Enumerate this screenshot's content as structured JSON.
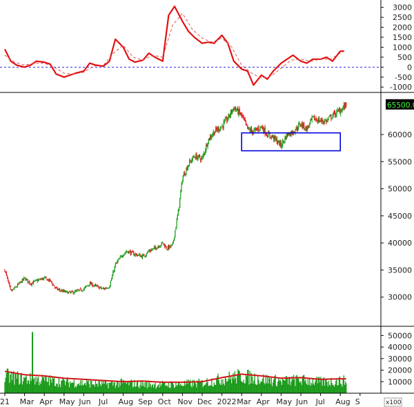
{
  "chart_data": {
    "type": "candlestick",
    "grid": false,
    "months": [
      "21",
      "Mar",
      "Apr",
      "May",
      "Jun",
      "Jul",
      "Aug",
      "Sep",
      "Oct",
      "Nov",
      "Dec",
      "2022",
      "Mar",
      "Apr",
      "May",
      "Jun",
      "Jul",
      "Aug",
      "S"
    ],
    "volume_unit_label": "x100",
    "panels": [
      {
        "name": "oscillator",
        "ylim": [
          -1200,
          3300
        ],
        "yticks": [
          "3000",
          "2500",
          "2000",
          "1500",
          "1000",
          "500",
          "0",
          "-500",
          "-1000"
        ],
        "reference_line": 0,
        "series": [
          {
            "style": "solid-red",
            "x": [
              0,
              0.3,
              0.6,
              1,
              1.3,
              1.6,
              2,
              2.3,
              2.6,
              3,
              3.3,
              3.6,
              4,
              4.3,
              4.6,
              5,
              5.3,
              5.6,
              6,
              6.3,
              6.6,
              7,
              7.3,
              7.6,
              8,
              8.3,
              8.6,
              9,
              9.3,
              9.6,
              10,
              10.3,
              10.6,
              11,
              11.3,
              11.6,
              12,
              12.3,
              12.6,
              13,
              13.3,
              13.6,
              14,
              14.3,
              14.6,
              15,
              15.3,
              15.6,
              16,
              16.3,
              16.6,
              17,
              17.2
            ],
            "y": [
              900,
              300,
              100,
              0,
              100,
              300,
              250,
              150,
              -350,
              -500,
              -400,
              -300,
              -200,
              200,
              100,
              50,
              300,
              1400,
              1000,
              400,
              250,
              350,
              700,
              500,
              300,
              2600,
              3050,
              2300,
              1800,
              1500,
              1200,
              1250,
              1200,
              1600,
              1200,
              300,
              -100,
              -200,
              -900,
              -400,
              -600,
              -200,
              200,
              400,
              600,
              300,
              200,
              400,
              400,
              500,
              300,
              800,
              800
            ]
          },
          {
            "style": "dashed-red",
            "x": [
              0,
              0.5,
              1,
              1.5,
              2,
              2.5,
              3,
              3.5,
              4,
              4.5,
              5,
              5.5,
              6,
              6.5,
              7,
              7.5,
              8,
              8.5,
              9,
              9.5,
              10,
              10.5,
              11,
              11.5,
              12,
              12.5,
              13,
              13.5,
              14,
              14.5,
              15,
              15.5,
              16,
              16.5,
              17,
              17.2
            ],
            "y": [
              600,
              250,
              100,
              200,
              200,
              0,
              -300,
              -350,
              -250,
              50,
              100,
              700,
              1100,
              500,
              350,
              600,
              500,
              2100,
              2700,
              1900,
              1450,
              1250,
              1450,
              1000,
              100,
              -300,
              -550,
              -450,
              -50,
              350,
              400,
              300,
              400,
              400,
              700,
              800
            ]
          }
        ]
      },
      {
        "name": "price",
        "ylim": [
          25000,
          67000
        ],
        "yticks": [
          "60000",
          "55000",
          "50000",
          "45000",
          "40000",
          "35000",
          "30000"
        ],
        "last_price_label": "65500.00",
        "last_price": 65500,
        "box": {
          "x": [
            12.0,
            17.0
          ],
          "y": [
            57000,
            60300
          ],
          "color": "#0000dd"
        },
        "close_series": {
          "x": [
            0,
            0.3,
            0.6,
            1,
            1.3,
            1.6,
            2,
            2.3,
            2.6,
            3,
            3.3,
            3.6,
            4,
            4.3,
            4.6,
            5,
            5.3,
            5.6,
            6,
            6.2,
            6.5,
            7,
            7.3,
            7.6,
            8,
            8.2,
            8.5,
            8.8,
            9,
            9.3,
            9.6,
            10,
            10.3,
            10.6,
            11,
            11.3,
            11.6,
            12,
            12.3,
            12.6,
            13,
            13.3,
            13.6,
            14,
            14.3,
            14.6,
            15,
            15.3,
            15.6,
            16,
            16.3,
            16.6,
            17,
            17.3
          ],
          "y": [
            35000,
            31000,
            32000,
            33500,
            32500,
            33000,
            33500,
            33000,
            31500,
            31000,
            30800,
            31000,
            31500,
            32500,
            32000,
            31500,
            32000,
            36000,
            38000,
            38500,
            38000,
            37500,
            38500,
            39000,
            40000,
            39000,
            39500,
            46000,
            52000,
            54500,
            56000,
            55500,
            59000,
            60500,
            61500,
            63000,
            65000,
            63500,
            61000,
            60500,
            61500,
            60000,
            59500,
            58000,
            60000,
            60500,
            62000,
            61000,
            63000,
            62500,
            62500,
            63500,
            64500,
            65500
          ]
        }
      },
      {
        "name": "volume",
        "ylim": [
          0,
          55000
        ],
        "yticks": [
          "50000",
          "40000",
          "30000",
          "20000",
          "10000"
        ],
        "spike": {
          "x": 1.4,
          "value": 53000
        },
        "base_series": {
          "x": [
            0,
            1,
            2,
            3,
            4,
            5,
            6,
            7,
            8,
            9,
            10,
            11,
            12,
            13,
            14,
            15,
            16,
            17,
            17.3
          ],
          "y": [
            17000,
            14000,
            13000,
            11000,
            10000,
            9000,
            10000,
            9000,
            8500,
            9000,
            10000,
            14000,
            17000,
            14000,
            12000,
            13000,
            11000,
            12000,
            12000
          ]
        },
        "ma_series": {
          "x": [
            0,
            1,
            2,
            3,
            4,
            5,
            6,
            7,
            8,
            9,
            10,
            11,
            12,
            13,
            14,
            15,
            16,
            17,
            17.3
          ],
          "y": [
            19000,
            16000,
            15000,
            13000,
            12000,
            11000,
            10000,
            10500,
            9500,
            9500,
            10000,
            13500,
            16500,
            15000,
            13000,
            13500,
            12000,
            12500,
            12500
          ]
        }
      }
    ]
  }
}
